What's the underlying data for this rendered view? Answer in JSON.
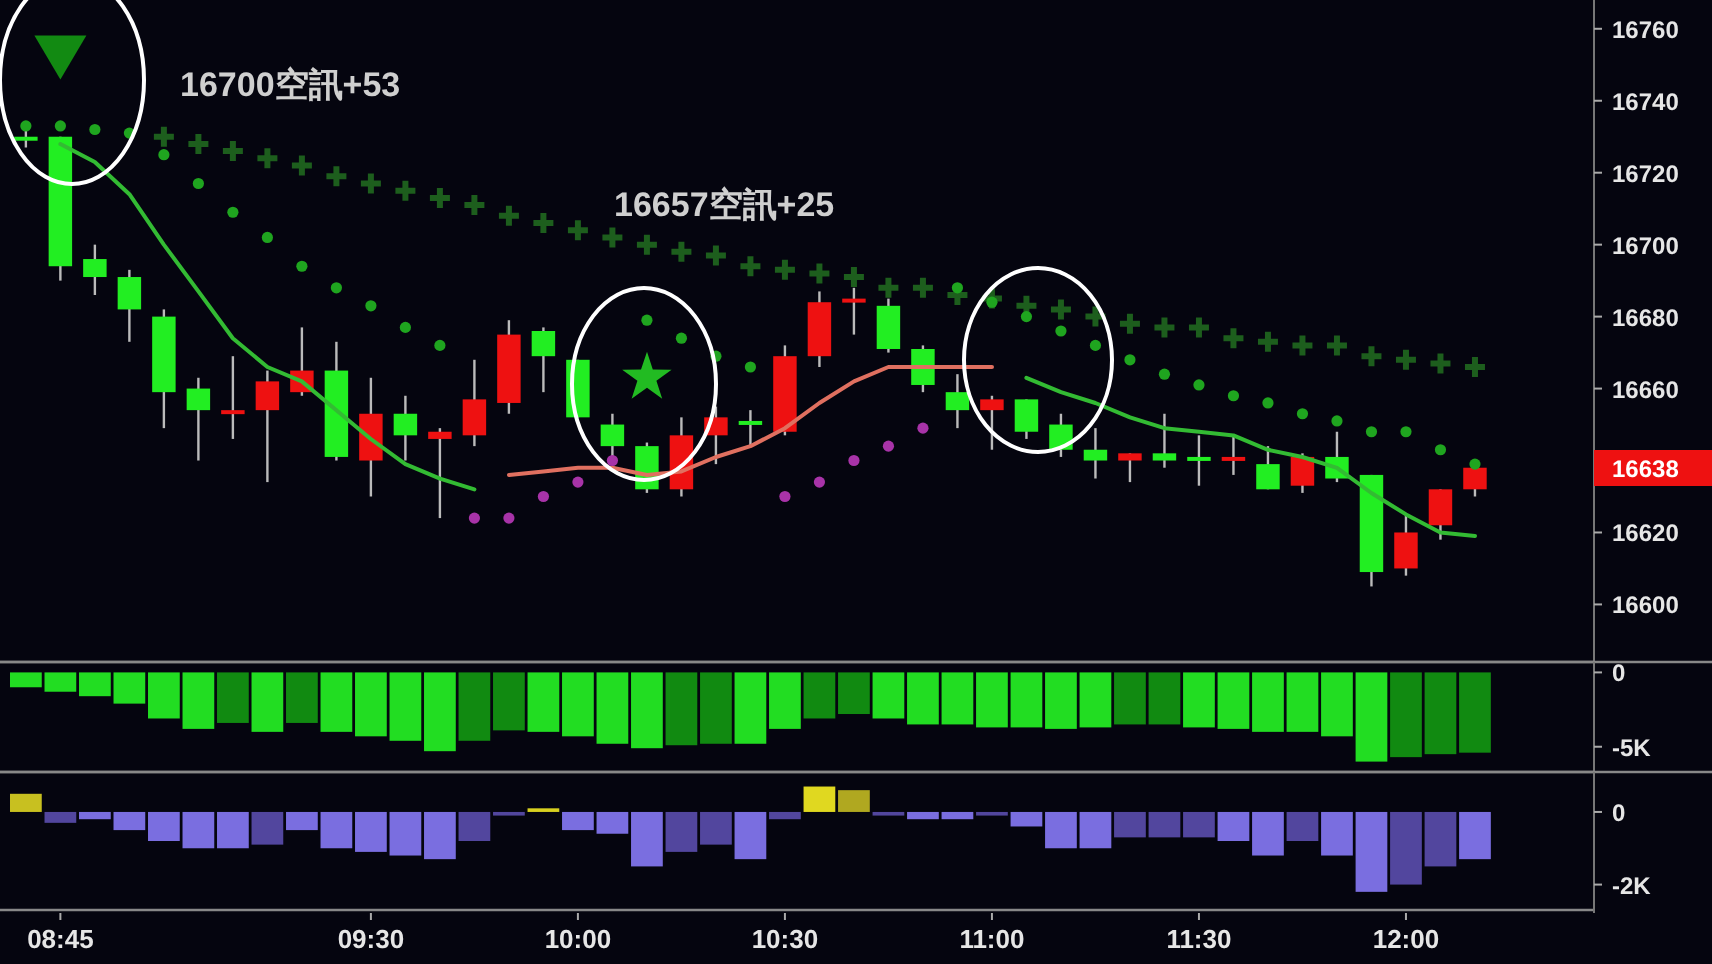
{
  "chart_data": [
    {
      "type": "candlestick",
      "categories": [
        null,
        null,
        null,
        null,
        null,
        null,
        null,
        null,
        null,
        null,
        null,
        null,
        null,
        null,
        null,
        null,
        null,
        null,
        null,
        null,
        null,
        null,
        null,
        null,
        null,
        null,
        null,
        null,
        null,
        null,
        null,
        null,
        null,
        null,
        null,
        null,
        null,
        null,
        null,
        null,
        null,
        null,
        null
      ],
      "ohlc": [
        [
          16730,
          16732,
          16727,
          16729
        ],
        [
          16730,
          16730,
          16690,
          16694
        ],
        [
          16696,
          16700,
          16686,
          16691
        ],
        [
          16691,
          16693,
          16673,
          16682
        ],
        [
          16680,
          16682,
          16649,
          16659
        ],
        [
          16660,
          16663,
          16640,
          16654
        ],
        [
          16653,
          16669,
          16646,
          16654
        ],
        [
          16654,
          16665,
          16634,
          16662
        ],
        [
          16659,
          16677,
          16658,
          16665
        ],
        [
          16665,
          16673,
          16640,
          16641
        ],
        [
          16640,
          16663,
          16630,
          16653
        ],
        [
          16653,
          16658,
          16640,
          16647
        ],
        [
          16646,
          16649,
          16624,
          16648
        ],
        [
          16647,
          16668,
          16644,
          16657
        ],
        [
          16656,
          16679,
          16653,
          16675
        ],
        [
          16676,
          16677,
          16659,
          16669
        ],
        [
          16668,
          16668,
          16652,
          16652
        ],
        [
          16650,
          16653,
          16640,
          16644
        ],
        [
          16644,
          16645,
          16631,
          16632
        ],
        [
          16632,
          16652,
          16630,
          16647
        ],
        [
          16647,
          16655,
          16639,
          16652
        ],
        [
          16651,
          16654,
          16644,
          16650
        ],
        [
          16648,
          16672,
          16647,
          16669
        ],
        [
          16669,
          16687,
          16666,
          16684
        ],
        [
          16684,
          16688,
          16675,
          16685
        ],
        [
          16683,
          16685,
          16670,
          16671
        ],
        [
          16671,
          16672,
          16659,
          16661
        ],
        [
          16659,
          16664,
          16649,
          16654
        ],
        [
          16654,
          16658,
          16643,
          16657
        ],
        [
          16657,
          16657,
          16646,
          16648
        ],
        [
          16650,
          16653,
          16641,
          16643
        ],
        [
          16643,
          16649,
          16635,
          16640
        ],
        [
          16640,
          16642,
          16634,
          16642
        ],
        [
          16642,
          16653,
          16638,
          16640
        ],
        [
          16641,
          16647,
          16633,
          16640
        ],
        [
          16640,
          16647,
          16636,
          16641
        ],
        [
          16639,
          16644,
          16632,
          16632
        ],
        [
          16633,
          16642,
          16631,
          16641
        ],
        [
          16641,
          16648,
          16634,
          16635
        ],
        [
          16636,
          16636,
          16605,
          16609
        ],
        [
          16610,
          16625,
          16608,
          16620
        ],
        [
          16622,
          16632,
          16618,
          16632
        ],
        [
          16632,
          16638,
          16630,
          16638
        ]
      ],
      "colors": [
        "#22ee22",
        "#22ee22",
        "#22ee22",
        "#22ee22",
        "#22ee22",
        "#22ee22",
        "#ee1111",
        "#ee1111",
        "#ee1111",
        "#22ee22",
        "#ee1111",
        "#22ee22",
        "#ee1111",
        "#ee1111",
        "#ee1111",
        "#22ee22",
        "#22ee22",
        "#22ee22",
        "#22ee22",
        "#ee1111",
        "#ee1111",
        "#22ee22",
        "#ee1111",
        "#ee1111",
        "#ee1111",
        "#22ee22",
        "#22ee22",
        "#22ee22",
        "#ee1111",
        "#22ee22",
        "#22ee22",
        "#22ee22",
        "#ee1111",
        "#22ee22",
        "#22ee22",
        "#ee1111",
        "#22ee22",
        "#ee1111",
        "#22ee22",
        "#22ee22",
        "#ee1111",
        "#ee1111",
        "#ee1111"
      ],
      "series": [
        {
          "type": "line",
          "color": "#33bb33",
          "values": [
            null,
            16728,
            16723,
            16714,
            16700,
            16687,
            16674,
            16666,
            16662,
            16654,
            16646,
            16639,
            16635,
            16632,
            null,
            null,
            null,
            null,
            null,
            null,
            null,
            null,
            null,
            null,
            null,
            null,
            null,
            null,
            null,
            16663,
            16659,
            16656,
            16652,
            16649,
            16648,
            16647,
            16643,
            16641,
            16638,
            16631,
            16625,
            16620,
            16619
          ]
        },
        {
          "type": "line",
          "color": "#e07060",
          "values": [
            null,
            null,
            null,
            null,
            null,
            null,
            null,
            null,
            null,
            null,
            null,
            null,
            null,
            null,
            16636,
            16637,
            16638,
            16638,
            16636,
            16637,
            16641,
            16644,
            16649,
            16656,
            16662,
            16666,
            16666,
            16666,
            16666,
            null,
            null,
            null,
            null,
            null,
            null,
            null,
            null,
            null,
            null,
            null,
            null,
            null,
            null
          ]
        },
        {
          "type": "scatter",
          "marker": "cross",
          "color": "#1d5e1d",
          "values": [
            null,
            null,
            null,
            null,
            16730,
            16728,
            16726,
            16724,
            16722,
            16719,
            16717,
            16715,
            16713,
            16711,
            16708,
            16706,
            16704,
            16702,
            16700,
            16698,
            16697,
            16694,
            16693,
            16692,
            16691,
            16688,
            16688,
            16686,
            16685,
            16683,
            16682,
            16680,
            16678,
            16677,
            16677,
            16674,
            16673,
            16672,
            16672,
            16669,
            16668,
            16667,
            16666
          ]
        },
        {
          "type": "scatter",
          "marker": "circle",
          "color": "#1fa51f",
          "values": [
            16733,
            16733,
            16732,
            16731,
            16725,
            16717,
            16709,
            16702,
            16694,
            16688,
            16683,
            16677,
            16672,
            null,
            null,
            null,
            null,
            null,
            16679,
            16674,
            16669,
            16666,
            null,
            null,
            null,
            null,
            null,
            16688,
            16684,
            16680,
            16676,
            16672,
            16668,
            16664,
            16661,
            16658,
            16656,
            16653,
            16651,
            16648,
            16648,
            16643,
            16639
          ]
        },
        {
          "type": "scatter",
          "marker": "circle",
          "color": "#a833a8",
          "values": [
            null,
            null,
            null,
            null,
            null,
            null,
            null,
            null,
            null,
            null,
            null,
            null,
            null,
            16624,
            16624,
            16630,
            16634,
            16640,
            null,
            null,
            null,
            null,
            16630,
            16634,
            16640,
            16644,
            16649,
            null,
            null,
            null,
            null,
            null,
            null,
            null,
            null,
            null,
            null,
            null,
            null,
            null,
            null,
            null,
            null
          ]
        },
        {
          "type": "scatter",
          "marker": "triangle",
          "color": "#128a12",
          "values": [
            null,
            16752,
            null,
            null,
            null,
            null,
            null,
            null,
            null,
            null,
            null,
            null,
            null,
            null,
            null,
            null,
            null,
            null,
            null,
            null,
            null,
            null,
            null,
            null,
            null,
            null,
            null,
            null,
            null,
            null,
            null,
            null,
            null,
            null,
            null,
            null,
            null,
            null,
            null,
            null,
            null,
            null,
            null
          ]
        },
        {
          "type": "scatter",
          "marker": "star",
          "color": "#22bb22",
          "values": [
            null,
            null,
            null,
            null,
            null,
            null,
            null,
            null,
            null,
            null,
            null,
            null,
            null,
            null,
            null,
            null,
            null,
            null,
            16663,
            null,
            null,
            null,
            null,
            null,
            null,
            null,
            null,
            null,
            null,
            null,
            null,
            null,
            null,
            null,
            null,
            null,
            null,
            null,
            null,
            null,
            null,
            null,
            null
          ]
        }
      ],
      "ylim": [
        16584,
        16768
      ],
      "yticks": [
        16600,
        16620,
        16660,
        16680,
        16700,
        16720,
        16740,
        16760
      ],
      "annotations": [
        "16700空訊+53",
        "16657空訊+25",
        "16638"
      ],
      "tick_labels": "y"
    },
    {
      "type": "bar",
      "categories": [
        null,
        null,
        null,
        null,
        null,
        null,
        null,
        null,
        null,
        null,
        null,
        null,
        null,
        null,
        null,
        null,
        null,
        null,
        null,
        null,
        null,
        null,
        null,
        null,
        null,
        null,
        null,
        null,
        null,
        null,
        null,
        null,
        null,
        null,
        null,
        null,
        null,
        null,
        null,
        null,
        null,
        null,
        null
      ],
      "values": [
        -1000,
        -1300,
        -1600,
        -2100,
        -3100,
        -3800,
        -3400,
        -4000,
        -3400,
        -4000,
        -4300,
        -4600,
        -5300,
        -4600,
        -3900,
        -4000,
        -4300,
        -4800,
        -5100,
        -4900,
        -4800,
        -4800,
        -3800,
        -3100,
        -2800,
        -3100,
        -3500,
        -3500,
        -3700,
        -3700,
        -3800,
        -3700,
        -3500,
        -3500,
        -3700,
        -3800,
        -4000,
        -4000,
        -4300,
        -6000,
        -5700,
        -5500,
        -5400
      ],
      "colors": [
        "#22dd22",
        "#22dd22",
        "#22dd22",
        "#22dd22",
        "#22dd22",
        "#22dd22",
        "#118a11",
        "#22dd22",
        "#118a11",
        "#22dd22",
        "#22dd22",
        "#22dd22",
        "#22dd22",
        "#118a11",
        "#118a11",
        "#22dd22",
        "#22dd22",
        "#22dd22",
        "#22dd22",
        "#118a11",
        "#118a11",
        "#22dd22",
        "#22dd22",
        "#118a11",
        "#118a11",
        "#22dd22",
        "#22dd22",
        "#22dd22",
        "#22dd22",
        "#22dd22",
        "#22dd22",
        "#22dd22",
        "#118a11",
        "#118a11",
        "#22dd22",
        "#22dd22",
        "#22dd22",
        "#22dd22",
        "#22dd22",
        "#22dd22",
        "#118a11",
        "#118a11",
        "#118a11"
      ],
      "ylim": [
        -6700,
        700
      ],
      "yticks": [
        {
          "value": -5000,
          "label": "-5K"
        },
        0
      ],
      "tick_labels": "y"
    },
    {
      "type": "bar",
      "categories": [
        null,
        "08:45",
        null,
        null,
        null,
        null,
        null,
        null,
        null,
        null,
        "09:30",
        null,
        null,
        null,
        null,
        null,
        "10:00",
        null,
        null,
        null,
        null,
        null,
        "10:30",
        null,
        null,
        null,
        null,
        null,
        "11:00",
        null,
        null,
        null,
        null,
        null,
        "11:30",
        null,
        null,
        null,
        null,
        null,
        "12:00",
        null,
        null
      ],
      "values": [
        500,
        -300,
        -200,
        -500,
        -800,
        -1000,
        -1000,
        -900,
        -500,
        -1000,
        -1100,
        -1200,
        -1300,
        -800,
        -100,
        100,
        -500,
        -600,
        -1500,
        -1100,
        -900,
        -1300,
        -200,
        700,
        600,
        -100,
        -200,
        -200,
        -100,
        -400,
        -1000,
        -1000,
        -700,
        -700,
        -700,
        -800,
        -1200,
        -800,
        -1200,
        -2200,
        -2000,
        -1500,
        -1300
      ],
      "colors": [
        "#c8c020",
        "#52469e",
        "#7a6ee0",
        "#7a6ee0",
        "#7a6ee0",
        "#7a6ee0",
        "#7a6ee0",
        "#52469e",
        "#7a6ee0",
        "#7a6ee0",
        "#7a6ee0",
        "#7a6ee0",
        "#7a6ee0",
        "#52469e",
        "#52469e",
        "#d8d020",
        "#7a6ee0",
        "#7a6ee0",
        "#7a6ee0",
        "#52469e",
        "#52469e",
        "#7a6ee0",
        "#52469e",
        "#e0d820",
        "#b0a820",
        "#52469e",
        "#7a6ee0",
        "#7a6ee0",
        "#52469e",
        "#7a6ee0",
        "#7a6ee0",
        "#7a6ee0",
        "#52469e",
        "#52469e",
        "#52469e",
        "#7a6ee0",
        "#7a6ee0",
        "#52469e",
        "#7a6ee0",
        "#7a6ee0",
        "#52469e",
        "#52469e",
        "#7a6ee0"
      ],
      "ylim": [
        -2700,
        1100
      ],
      "yticks": [
        {
          "value": -2000,
          "label": "-2K"
        },
        0
      ]
    }
  ]
}
